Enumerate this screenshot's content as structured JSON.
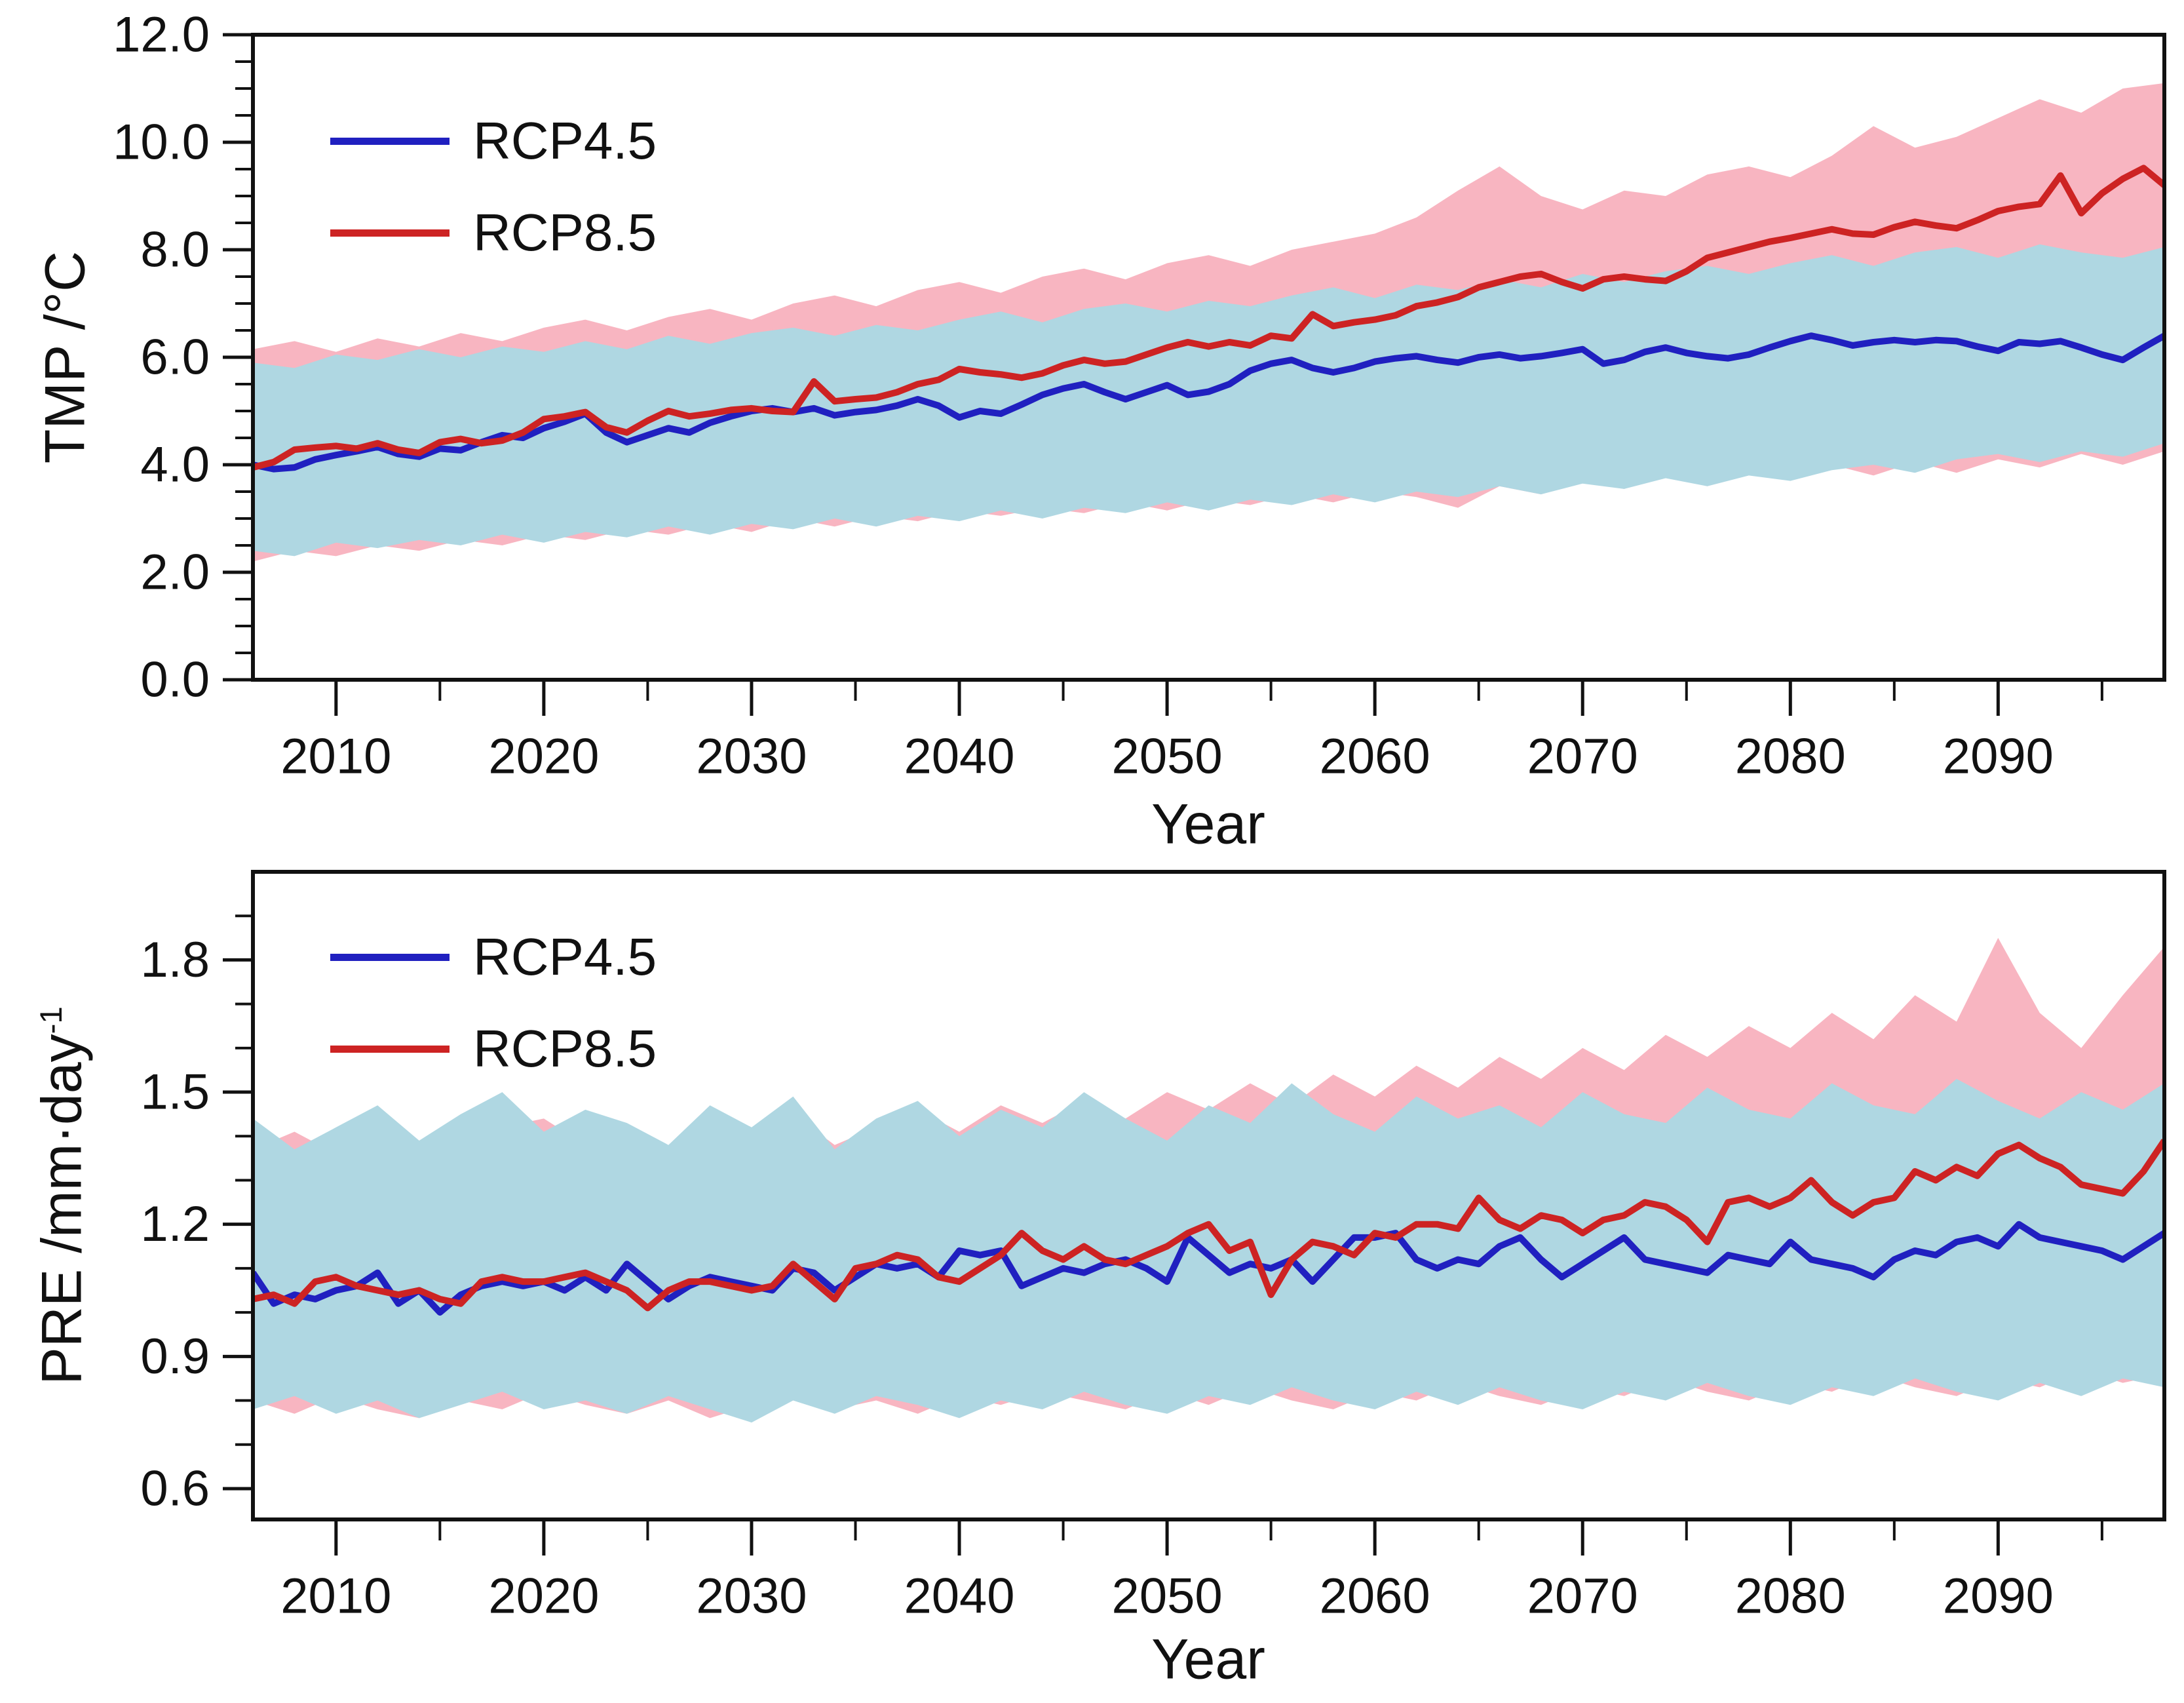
{
  "figure": {
    "background": "#ffffff",
    "colors": {
      "rcp45_line": "#2020c0",
      "rcp85_line": "#cd2323",
      "rcp45_band": "#afd7e2",
      "rcp85_band": "#f8b5c1",
      "axis": "#111111"
    },
    "legend": [
      {
        "label": "RCP4.5",
        "color_key": "rcp45_line"
      },
      {
        "label": "RCP8.5",
        "color_key": "rcp85_line"
      }
    ]
  },
  "chart_data": [
    {
      "type": "line",
      "title": "",
      "xlabel": "Year",
      "ylabel": "TMP /°C",
      "ylabel_sup": "",
      "xlim": [
        2006,
        2098
      ],
      "ylim": [
        0,
        12
      ],
      "grid": false,
      "legend_position": "upper-left-inside",
      "xticks_major": [
        {
          "v": 2010,
          "label": "2010"
        },
        {
          "v": 2020,
          "label": "2020"
        },
        {
          "v": 2030,
          "label": "2030"
        },
        {
          "v": 2040,
          "label": "2040"
        },
        {
          "v": 2050,
          "label": "2050"
        },
        {
          "v": 2060,
          "label": "2060"
        },
        {
          "v": 2070,
          "label": "2070"
        },
        {
          "v": 2080,
          "label": "2080"
        },
        {
          "v": 2090,
          "label": "2090"
        }
      ],
      "xticks_minor": [
        2015,
        2025,
        2035,
        2045,
        2055,
        2065,
        2075,
        2085,
        2095
      ],
      "yticks_major": [
        {
          "v": 0,
          "label": "0.0"
        },
        {
          "v": 2,
          "label": "2.0"
        },
        {
          "v": 4,
          "label": "4.0"
        },
        {
          "v": 6,
          "label": "6.0"
        },
        {
          "v": 8,
          "label": "8.0"
        },
        {
          "v": 10,
          "label": "10.0"
        },
        {
          "v": 12,
          "label": "12.0"
        }
      ],
      "yticks_minor": [
        0.5,
        1.0,
        1.5,
        2.5,
        3.0,
        3.5,
        4.5,
        5.0,
        5.5,
        6.5,
        7.0,
        7.5,
        8.5,
        9.0,
        9.5,
        10.5,
        11.0,
        11.5
      ],
      "years": {
        "start": 2006,
        "step": 1,
        "count": 93
      },
      "series": [
        {
          "name": "RCP4.5",
          "color_key": "rcp45_line",
          "values": [
            4.0,
            3.92,
            3.95,
            4.1,
            4.18,
            4.25,
            4.33,
            4.2,
            4.15,
            4.3,
            4.27,
            4.42,
            4.55,
            4.5,
            4.68,
            4.8,
            4.95,
            4.6,
            4.42,
            4.55,
            4.68,
            4.6,
            4.78,
            4.9,
            5.0,
            5.05,
            4.98,
            5.05,
            4.92,
            4.98,
            5.02,
            5.1,
            5.22,
            5.1,
            4.88,
            5.0,
            4.95,
            5.12,
            5.3,
            5.42,
            5.5,
            5.35,
            5.22,
            5.35,
            5.48,
            5.3,
            5.36,
            5.5,
            5.75,
            5.88,
            5.95,
            5.8,
            5.72,
            5.8,
            5.92,
            5.98,
            6.02,
            5.95,
            5.9,
            6.0,
            6.05,
            5.98,
            6.02,
            6.08,
            6.15,
            5.88,
            5.95,
            6.1,
            6.18,
            6.08,
            6.02,
            5.98,
            6.05,
            6.18,
            6.3,
            6.4,
            6.32,
            6.22,
            6.28,
            6.32,
            6.28,
            6.32,
            6.3,
            6.2,
            6.12,
            6.28,
            6.25,
            6.3,
            6.18,
            6.05,
            5.95,
            6.18,
            6.4
          ]
        },
        {
          "name": "RCP8.5",
          "color_key": "rcp85_line",
          "values": [
            3.95,
            4.05,
            4.28,
            4.32,
            4.35,
            4.3,
            4.4,
            4.28,
            4.22,
            4.42,
            4.48,
            4.4,
            4.45,
            4.6,
            4.85,
            4.9,
            4.98,
            4.7,
            4.6,
            4.82,
            5.0,
            4.9,
            4.95,
            5.02,
            5.05,
            5.0,
            4.98,
            5.55,
            5.18,
            5.22,
            5.25,
            5.35,
            5.5,
            5.58,
            5.78,
            5.72,
            5.68,
            5.62,
            5.7,
            5.85,
            5.95,
            5.88,
            5.92,
            6.05,
            6.18,
            6.28,
            6.2,
            6.28,
            6.22,
            6.4,
            6.35,
            6.8,
            6.58,
            6.65,
            6.7,
            6.78,
            6.95,
            7.02,
            7.12,
            7.3,
            7.4,
            7.5,
            7.55,
            7.4,
            7.28,
            7.45,
            7.5,
            7.45,
            7.42,
            7.6,
            7.85,
            7.95,
            8.05,
            8.15,
            8.22,
            8.3,
            8.38,
            8.3,
            8.28,
            8.42,
            8.52,
            8.45,
            8.4,
            8.55,
            8.72,
            8.8,
            8.85,
            9.38,
            8.68,
            9.05,
            9.32,
            9.52,
            9.2
          ]
        }
      ],
      "band_years": {
        "start": 2006,
        "step": 2,
        "count": 47
      },
      "bands": [
        {
          "name": "RCP8.5 model range",
          "color_key": "rcp85_band",
          "upper": [
            6.15,
            6.3,
            6.1,
            6.35,
            6.2,
            6.45,
            6.3,
            6.55,
            6.7,
            6.5,
            6.75,
            6.9,
            6.7,
            7.0,
            7.15,
            6.95,
            7.25,
            7.4,
            7.2,
            7.5,
            7.65,
            7.45,
            7.75,
            7.9,
            7.7,
            8.0,
            8.15,
            8.3,
            8.6,
            9.1,
            9.55,
            9.0,
            8.75,
            9.1,
            9.0,
            9.4,
            9.55,
            9.35,
            9.75,
            10.3,
            9.9,
            10.1,
            10.45,
            10.8,
            10.55,
            11.0,
            11.1
          ],
          "lower": [
            2.2,
            2.4,
            2.3,
            2.5,
            2.4,
            2.6,
            2.5,
            2.7,
            2.6,
            2.8,
            2.7,
            2.9,
            2.75,
            3.0,
            2.85,
            3.05,
            2.95,
            3.15,
            3.05,
            3.2,
            3.1,
            3.3,
            3.15,
            3.35,
            3.25,
            3.45,
            3.3,
            3.5,
            3.4,
            3.2,
            3.6,
            3.45,
            3.7,
            3.55,
            3.8,
            3.6,
            3.9,
            3.7,
            4.0,
            3.8,
            4.05,
            3.85,
            4.1,
            3.95,
            4.2,
            4.0,
            4.25
          ]
        },
        {
          "name": "RCP4.5 model range",
          "color_key": "rcp45_band",
          "upper": [
            5.9,
            5.8,
            6.05,
            5.95,
            6.15,
            6.0,
            6.2,
            6.1,
            6.3,
            6.15,
            6.4,
            6.25,
            6.45,
            6.55,
            6.4,
            6.6,
            6.5,
            6.7,
            6.85,
            6.65,
            6.9,
            7.0,
            6.85,
            7.05,
            6.95,
            7.15,
            7.3,
            7.1,
            7.35,
            7.25,
            7.45,
            7.3,
            7.55,
            7.4,
            7.6,
            7.7,
            7.55,
            7.75,
            7.9,
            7.7,
            7.95,
            8.05,
            7.85,
            8.1,
            7.95,
            7.85,
            8.05
          ],
          "lower": [
            2.4,
            2.3,
            2.55,
            2.45,
            2.6,
            2.5,
            2.7,
            2.55,
            2.75,
            2.65,
            2.85,
            2.7,
            2.9,
            2.8,
            3.0,
            2.85,
            3.05,
            2.95,
            3.15,
            3.0,
            3.2,
            3.1,
            3.3,
            3.15,
            3.35,
            3.25,
            3.45,
            3.3,
            3.5,
            3.4,
            3.6,
            3.45,
            3.65,
            3.55,
            3.75,
            3.6,
            3.8,
            3.7,
            3.9,
            4.0,
            3.85,
            4.1,
            4.2,
            4.05,
            4.25,
            4.15,
            4.4
          ]
        }
      ]
    },
    {
      "type": "line",
      "title": "",
      "xlabel": "Year",
      "ylabel": "PRE /mm·day",
      "ylabel_sup": "-1",
      "xlim": [
        2006,
        2098
      ],
      "ylim": [
        0.53,
        2.0
      ],
      "grid": false,
      "legend_position": "upper-left-inside",
      "xticks_major": [
        {
          "v": 2010,
          "label": "2010"
        },
        {
          "v": 2020,
          "label": "2020"
        },
        {
          "v": 2030,
          "label": "2030"
        },
        {
          "v": 2040,
          "label": "2040"
        },
        {
          "v": 2050,
          "label": "2050"
        },
        {
          "v": 2060,
          "label": "2060"
        },
        {
          "v": 2070,
          "label": "2070"
        },
        {
          "v": 2080,
          "label": "2080"
        },
        {
          "v": 2090,
          "label": "2090"
        }
      ],
      "xticks_minor": [
        2015,
        2025,
        2035,
        2045,
        2055,
        2065,
        2075,
        2085,
        2095
      ],
      "yticks_major": [
        {
          "v": 0.6,
          "label": "0.6"
        },
        {
          "v": 0.9,
          "label": "0.9"
        },
        {
          "v": 1.2,
          "label": "1.2"
        },
        {
          "v": 1.5,
          "label": "1.5"
        },
        {
          "v": 1.8,
          "label": "1.8"
        }
      ],
      "yticks_minor": [
        0.7,
        0.8,
        1.0,
        1.1,
        1.3,
        1.4,
        1.6,
        1.7,
        1.9
      ],
      "years": {
        "start": 2006,
        "step": 1,
        "count": 93
      },
      "series": [
        {
          "name": "RCP4.5",
          "color_key": "rcp45_line",
          "values": [
            1.09,
            1.02,
            1.04,
            1.03,
            1.05,
            1.06,
            1.09,
            1.02,
            1.05,
            1.0,
            1.04,
            1.06,
            1.07,
            1.06,
            1.07,
            1.05,
            1.08,
            1.05,
            1.11,
            1.07,
            1.03,
            1.06,
            1.08,
            1.07,
            1.06,
            1.05,
            1.1,
            1.09,
            1.05,
            1.08,
            1.11,
            1.1,
            1.11,
            1.08,
            1.14,
            1.13,
            1.14,
            1.06,
            1.08,
            1.1,
            1.09,
            1.11,
            1.12,
            1.1,
            1.07,
            1.17,
            1.13,
            1.09,
            1.11,
            1.1,
            1.12,
            1.07,
            1.12,
            1.17,
            1.17,
            1.18,
            1.12,
            1.1,
            1.12,
            1.11,
            1.15,
            1.17,
            1.12,
            1.08,
            1.11,
            1.14,
            1.17,
            1.12,
            1.11,
            1.1,
            1.09,
            1.13,
            1.12,
            1.11,
            1.16,
            1.12,
            1.11,
            1.1,
            1.08,
            1.12,
            1.14,
            1.13,
            1.16,
            1.17,
            1.15,
            1.2,
            1.17,
            1.16,
            1.15,
            1.14,
            1.12,
            1.15,
            1.18
          ]
        },
        {
          "name": "RCP8.5",
          "color_key": "rcp85_line",
          "values": [
            1.03,
            1.04,
            1.02,
            1.07,
            1.08,
            1.06,
            1.05,
            1.04,
            1.05,
            1.03,
            1.02,
            1.07,
            1.08,
            1.07,
            1.07,
            1.08,
            1.09,
            1.07,
            1.05,
            1.01,
            1.05,
            1.07,
            1.07,
            1.06,
            1.05,
            1.06,
            1.11,
            1.07,
            1.03,
            1.1,
            1.11,
            1.13,
            1.12,
            1.08,
            1.07,
            1.1,
            1.13,
            1.18,
            1.14,
            1.12,
            1.15,
            1.12,
            1.11,
            1.13,
            1.15,
            1.18,
            1.2,
            1.14,
            1.16,
            1.04,
            1.12,
            1.16,
            1.15,
            1.13,
            1.18,
            1.17,
            1.2,
            1.2,
            1.19,
            1.26,
            1.21,
            1.19,
            1.22,
            1.21,
            1.18,
            1.21,
            1.22,
            1.25,
            1.24,
            1.21,
            1.16,
            1.25,
            1.26,
            1.24,
            1.26,
            1.3,
            1.25,
            1.22,
            1.25,
            1.26,
            1.32,
            1.3,
            1.33,
            1.31,
            1.36,
            1.38,
            1.35,
            1.33,
            1.29,
            1.28,
            1.27,
            1.32,
            1.39
          ]
        }
      ],
      "band_years": {
        "start": 2006,
        "step": 2,
        "count": 47
      },
      "bands": [
        {
          "name": "RCP8.5 model range",
          "color_key": "rcp85_band",
          "upper": [
            1.37,
            1.41,
            1.36,
            1.43,
            1.39,
            1.35,
            1.42,
            1.44,
            1.38,
            1.41,
            1.37,
            1.43,
            1.4,
            1.45,
            1.38,
            1.42,
            1.46,
            1.41,
            1.47,
            1.43,
            1.48,
            1.44,
            1.5,
            1.46,
            1.52,
            1.47,
            1.54,
            1.49,
            1.56,
            1.51,
            1.58,
            1.53,
            1.6,
            1.55,
            1.63,
            1.58,
            1.65,
            1.6,
            1.68,
            1.62,
            1.72,
            1.66,
            1.85,
            1.68,
            1.6,
            1.72,
            1.83
          ],
          "lower": [
            0.8,
            0.77,
            0.81,
            0.78,
            0.76,
            0.8,
            0.78,
            0.82,
            0.79,
            0.77,
            0.8,
            0.76,
            0.79,
            0.81,
            0.78,
            0.8,
            0.77,
            0.81,
            0.79,
            0.82,
            0.8,
            0.78,
            0.82,
            0.79,
            0.83,
            0.8,
            0.78,
            0.82,
            0.8,
            0.84,
            0.81,
            0.79,
            0.83,
            0.81,
            0.85,
            0.82,
            0.8,
            0.84,
            0.82,
            0.86,
            0.83,
            0.81,
            0.85,
            0.83,
            0.87,
            0.84,
            0.86
          ]
        },
        {
          "name": "RCP4.5 model range",
          "color_key": "rcp45_band",
          "upper": [
            1.44,
            1.37,
            1.42,
            1.47,
            1.39,
            1.45,
            1.5,
            1.41,
            1.46,
            1.43,
            1.38,
            1.47,
            1.42,
            1.49,
            1.37,
            1.44,
            1.48,
            1.4,
            1.46,
            1.42,
            1.5,
            1.44,
            1.39,
            1.47,
            1.43,
            1.52,
            1.45,
            1.41,
            1.49,
            1.44,
            1.47,
            1.42,
            1.5,
            1.45,
            1.43,
            1.51,
            1.46,
            1.44,
            1.52,
            1.47,
            1.45,
            1.53,
            1.48,
            1.44,
            1.5,
            1.46,
            1.52
          ],
          "lower": [
            0.78,
            0.81,
            0.77,
            0.8,
            0.76,
            0.79,
            0.82,
            0.78,
            0.8,
            0.77,
            0.81,
            0.78,
            0.75,
            0.8,
            0.77,
            0.81,
            0.79,
            0.76,
            0.8,
            0.78,
            0.82,
            0.79,
            0.77,
            0.81,
            0.79,
            0.83,
            0.8,
            0.78,
            0.82,
            0.79,
            0.83,
            0.8,
            0.78,
            0.82,
            0.8,
            0.84,
            0.81,
            0.79,
            0.83,
            0.81,
            0.85,
            0.82,
            0.8,
            0.84,
            0.81,
            0.85,
            0.83
          ]
        }
      ]
    }
  ]
}
